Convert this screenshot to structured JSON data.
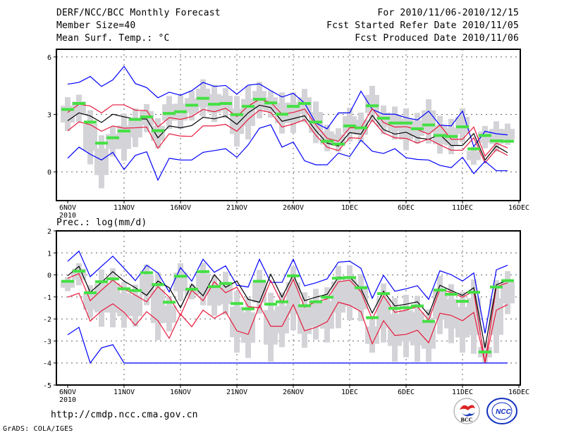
{
  "header": {
    "title": "DERF/NCC/BCC Monthly Forecast",
    "member_size": "Member Size=40",
    "variable": "Mean Surf. Temp.: °C",
    "period": "For 2010/11/06-2010/12/15",
    "start_date": "Fcst Started Refer Date 2010/11/05",
    "produced_date": "Fcst Produced Date 2010/11/06"
  },
  "footer": {
    "url": "http://cmdp.ncc.cma.gov.cn",
    "credit": "GrADS: COLA/IGES",
    "logo_left": "BCC",
    "logo_right": "NCC"
  },
  "colors": {
    "outer": "#0000ff",
    "inner": "#e8193c",
    "mean": "#000000",
    "median": "#44e044",
    "box": "#d4d4d8"
  },
  "chart_data": [
    {
      "type": "line",
      "title": "Mean Surf. Temp.: °C",
      "xlabel": "",
      "ylabel": "°C",
      "x_tick_labels": [
        "6NOV",
        "11NOV",
        "16NOV",
        "21NOV",
        "26NOV",
        "1DEC",
        "6DEC",
        "11DEC",
        "16DEC"
      ],
      "x_year_label": "2010",
      "y_ticks": [
        0,
        3,
        6
      ],
      "ylim": [
        -1.5,
        6.4
      ],
      "grid": true,
      "series": [
        {
          "name": "upper-blue",
          "values": [
            4.58,
            4.67,
            4.98,
            4.46,
            4.8,
            5.51,
            4.61,
            4.4,
            3.87,
            4.16,
            4.0,
            4.24,
            4.67,
            4.46,
            4.51,
            4.06,
            4.53,
            4.59,
            4.24,
            3.91,
            4.1,
            3.59,
            2.55,
            2.25,
            3.08,
            3.08,
            4.21,
            3.26,
            3.01,
            3.01,
            2.83,
            2.71,
            3.17,
            2.44,
            2.4,
            3.17,
            1.32,
            2.12,
            1.99,
            1.93
          ]
        },
        {
          "name": "upper-red",
          "values": [
            3.1,
            3.53,
            3.44,
            3.08,
            3.5,
            3.5,
            3.22,
            3.2,
            2.34,
            2.83,
            2.74,
            2.89,
            3.26,
            3.14,
            3.32,
            2.89,
            3.44,
            3.78,
            3.63,
            3.01,
            3.1,
            3.28,
            2.46,
            1.75,
            1.6,
            2.3,
            2.3,
            3.3,
            2.58,
            2.34,
            2.36,
            2.21,
            1.97,
            2.44,
            1.7,
            1.7,
            2.34,
            0.82,
            1.5,
            1.25
          ]
        },
        {
          "name": "mean",
          "values": [
            2.67,
            3.08,
            2.92,
            2.58,
            3.01,
            2.87,
            2.76,
            2.76,
            1.78,
            2.4,
            2.3,
            2.42,
            2.85,
            2.77,
            2.92,
            2.48,
            3.08,
            3.48,
            3.36,
            2.64,
            2.78,
            2.93,
            2.15,
            1.5,
            1.35,
            2.05,
            1.97,
            2.95,
            2.21,
            1.97,
            2.07,
            1.78,
            1.7,
            1.95,
            1.38,
            1.38,
            2.0,
            0.62,
            1.35,
            1.0
          ]
        },
        {
          "name": "lower-red",
          "values": [
            2.15,
            2.61,
            2.46,
            2.12,
            2.4,
            2.28,
            2.3,
            2.34,
            1.23,
            1.99,
            1.87,
            1.85,
            2.4,
            2.4,
            2.48,
            2.12,
            2.74,
            3.22,
            3.1,
            2.34,
            2.5,
            2.73,
            1.91,
            1.29,
            1.11,
            1.78,
            1.75,
            2.71,
            2.03,
            1.78,
            1.75,
            1.5,
            1.72,
            1.41,
            1.13,
            1.13,
            1.78,
            0.47,
            1.17,
            0.86
          ]
        },
        {
          "name": "lower-blue",
          "values": [
            0.71,
            1.29,
            0.92,
            0.62,
            1.02,
            0.12,
            0.86,
            1.05,
            -0.43,
            0.71,
            0.62,
            0.62,
            1.02,
            1.11,
            1.21,
            0.76,
            1.41,
            2.28,
            2.46,
            1.29,
            1.56,
            0.58,
            0.37,
            0.37,
            0.98,
            0.8,
            1.66,
            1.08,
            0.96,
            1.21,
            0.74,
            0.65,
            0.62,
            0.34,
            0.22,
            0.76,
            -0.09,
            0.55,
            0.06,
            0.06
          ]
        }
      ],
      "median": [
        3.26,
        3.57,
        2.6,
        1.5,
        1.78,
        2.13,
        2.74,
        2.87,
        2.15,
        3.05,
        3.14,
        3.48,
        3.84,
        3.53,
        3.57,
        2.99,
        3.42,
        3.79,
        3.6,
        3.01,
        3.42,
        3.57,
        2.6,
        1.6,
        1.45,
        2.4,
        2.3,
        3.45,
        2.8,
        2.55,
        2.55,
        2.25,
        2.45,
        1.9,
        1.85,
        2.35,
        1.2,
        1.9,
        1.62,
        1.6
      ],
      "box_high": [
        3.9,
        4.03,
        3.22,
        1.91,
        2.37,
        3.04,
        3.32,
        3.54,
        2.8,
        3.96,
        4.0,
        4.24,
        4.83,
        4.55,
        4.37,
        3.96,
        4.51,
        4.7,
        4.24,
        4.15,
        4.15,
        4.33,
        3.67,
        2.46,
        2.28,
        3.35,
        3.1,
        4.49,
        3.47,
        3.41,
        3.32,
        3.08,
        3.79,
        2.93,
        2.77,
        3.32,
        1.33,
        2.4,
        2.64,
        2.52
      ],
      "box_low": [
        2.13,
        2.6,
        0.39,
        -0.86,
        0.8,
        0.58,
        1.29,
        2.07,
        1.23,
        2.24,
        2.24,
        2.68,
        2.89,
        2.6,
        2.8,
        1.32,
        1.69,
        2.79,
        2.83,
        2.0,
        2.03,
        2.58,
        1.5,
        1.08,
        1.05,
        1.57,
        1.54,
        2.6,
        1.97,
        1.69,
        1.13,
        1.48,
        1.48,
        0.95,
        0.92,
        1.54,
        0.37,
        1.23,
        1.05,
        1.41
      ]
    },
    {
      "type": "line",
      "title": "Prec.: log(mm/d)",
      "xlabel": "",
      "ylabel": "log(mm/d)",
      "x_tick_labels": [
        "6NOV",
        "11NOV",
        "16NOV",
        "21NOV",
        "26NOV",
        "1DEC",
        "6DEC",
        "11DEC",
        "16DEC"
      ],
      "x_year_label": "2010",
      "y_ticks": [
        2,
        1,
        0,
        -1,
        -2,
        -3,
        -4,
        -5
      ],
      "ylim": [
        -5,
        2
      ],
      "grid": true,
      "series": [
        {
          "name": "upper-blue",
          "values": [
            0.62,
            1.08,
            -0.08,
            0.39,
            0.85,
            0.3,
            -0.26,
            0.44,
            0.09,
            -0.77,
            0.33,
            -0.28,
            0.71,
            0.12,
            0.41,
            -0.47,
            -0.55,
            0.71,
            -0.34,
            -0.34,
            0.71,
            -0.5,
            -0.36,
            -0.18,
            0.58,
            0.62,
            0.3,
            -1.06,
            -0.02,
            -0.74,
            -0.63,
            -0.49,
            -1.11,
            0.19,
            0.01,
            -0.28,
            0.09,
            -2.65,
            0.23,
            0.44
          ]
        },
        {
          "name": "upper-red",
          "values": [
            -0.15,
            0.06,
            -1.17,
            -0.69,
            -0.24,
            -0.63,
            -0.92,
            -1.22,
            -0.53,
            -1.01,
            -1.84,
            -0.69,
            -1.17,
            -0.31,
            -0.81,
            -0.56,
            -1.44,
            -1.49,
            -0.26,
            -1.28,
            -0.2,
            -1.47,
            -1.22,
            -1.09,
            -0.31,
            -0.24,
            -0.77,
            -2.0,
            -0.95,
            -1.7,
            -1.6,
            -1.44,
            -2.05,
            -0.66,
            -0.79,
            -1.01,
            -0.74,
            -4.0,
            -0.53,
            -0.36
          ]
        },
        {
          "name": "mean",
          "values": [
            -0.04,
            0.39,
            -0.79,
            -0.34,
            0.15,
            -0.28,
            -0.58,
            -0.93,
            -0.28,
            -0.58,
            -1.49,
            -0.42,
            -0.95,
            0.01,
            -0.56,
            -0.28,
            -1.11,
            -1.24,
            0.03,
            -1.01,
            0.01,
            -1.17,
            -1.01,
            -0.88,
            -0.1,
            -0.1,
            -0.63,
            -1.73,
            -0.74,
            -1.41,
            -1.33,
            -1.22,
            -1.81,
            -0.47,
            -0.71,
            -0.93,
            -0.58,
            -3.31,
            -0.45,
            -0.24
          ]
        },
        {
          "name": "lower-red",
          "values": [
            -1.01,
            -0.83,
            -2.1,
            -1.63,
            -1.31,
            -1.7,
            -2.29,
            -1.67,
            -2.08,
            -2.88,
            -1.78,
            -2.35,
            -1.6,
            -1.97,
            -1.67,
            -2.54,
            -2.7,
            -1.38,
            -2.33,
            -2.33,
            -1.35,
            -2.54,
            -2.38,
            -2.13,
            -1.24,
            -1.38,
            -1.67,
            -3.13,
            -2.08,
            -2.75,
            -2.7,
            -2.51,
            -3.08,
            -1.74,
            -1.84,
            -2.08,
            -1.7,
            -4.0,
            -1.6,
            -1.35
          ]
        },
        {
          "name": "lower-blue",
          "values": [
            -2.72,
            -2.38,
            -4.0,
            -3.31,
            -3.17,
            -4.0,
            -4.0,
            -4.0,
            -4.0,
            -4.0,
            -4.0,
            -4.0,
            -4.0,
            -4.0,
            -4.0,
            -4.0,
            -4.0,
            -4.0,
            -4.0,
            -4.0,
            -4.0,
            -4.0,
            -4.0,
            -4.0,
            -4.0,
            -4.0,
            -4.0,
            -4.0,
            -4.0,
            -4.0,
            -4.0,
            -4.0,
            -4.0,
            -4.0,
            -4.0,
            -4.0,
            -4.0,
            -4.0,
            -4.0,
            -4.0
          ]
        }
      ],
      "median": [
        -0.29,
        0.17,
        -0.81,
        -0.31,
        -0.18,
        -0.63,
        -0.71,
        0.1,
        -0.44,
        -1.24,
        -0.06,
        -0.65,
        0.15,
        -0.53,
        -0.39,
        -1.3,
        -1.54,
        -0.29,
        -1.33,
        -1.22,
        -0.04,
        -1.4,
        -1.22,
        -1.01,
        -0.15,
        -0.12,
        -0.58,
        -1.94,
        -0.85,
        -1.52,
        -1.49,
        -1.41,
        -2.11,
        -0.69,
        -0.88,
        -1.2,
        -0.79,
        -3.5,
        -0.55,
        -0.26
      ],
      "box_high": [
        -0.1,
        0.53,
        -0.47,
        0.25,
        0.3,
        -0.31,
        -0.44,
        0.47,
        0.12,
        -1.01,
        0.53,
        -0.42,
        0.55,
        -0.01,
        0.14,
        -0.74,
        -1.01,
        0.23,
        -0.81,
        -0.79,
        0.39,
        -0.79,
        -0.63,
        -0.56,
        0.41,
        0.44,
        0.04,
        -1.94,
        -0.39,
        -1.04,
        -0.9,
        -0.95,
        -1.56,
        -0.04,
        -0.42,
        -0.77,
        -0.2,
        -3.04,
        -0.24,
        0.17
      ],
      "box_low": [
        -0.74,
        -0.47,
        -1.95,
        -2.35,
        -2.38,
        -2.4,
        -2.35,
        -1.38,
        -2.96,
        -2.56,
        -1.17,
        -1.11,
        -1.38,
        -1.86,
        -1.81,
        -3.53,
        -3.77,
        -1.76,
        -3.95,
        -3.28,
        -2.51,
        -3.31,
        -2.94,
        -3.07,
        -2.42,
        -2.06,
        -2.1,
        -3.53,
        -3.07,
        -3.95,
        -3.74,
        -3.95,
        -3.95,
        -2.69,
        -3.1,
        -3.53,
        -3.58,
        -3.98,
        -3.55,
        -1.78
      ]
    }
  ]
}
